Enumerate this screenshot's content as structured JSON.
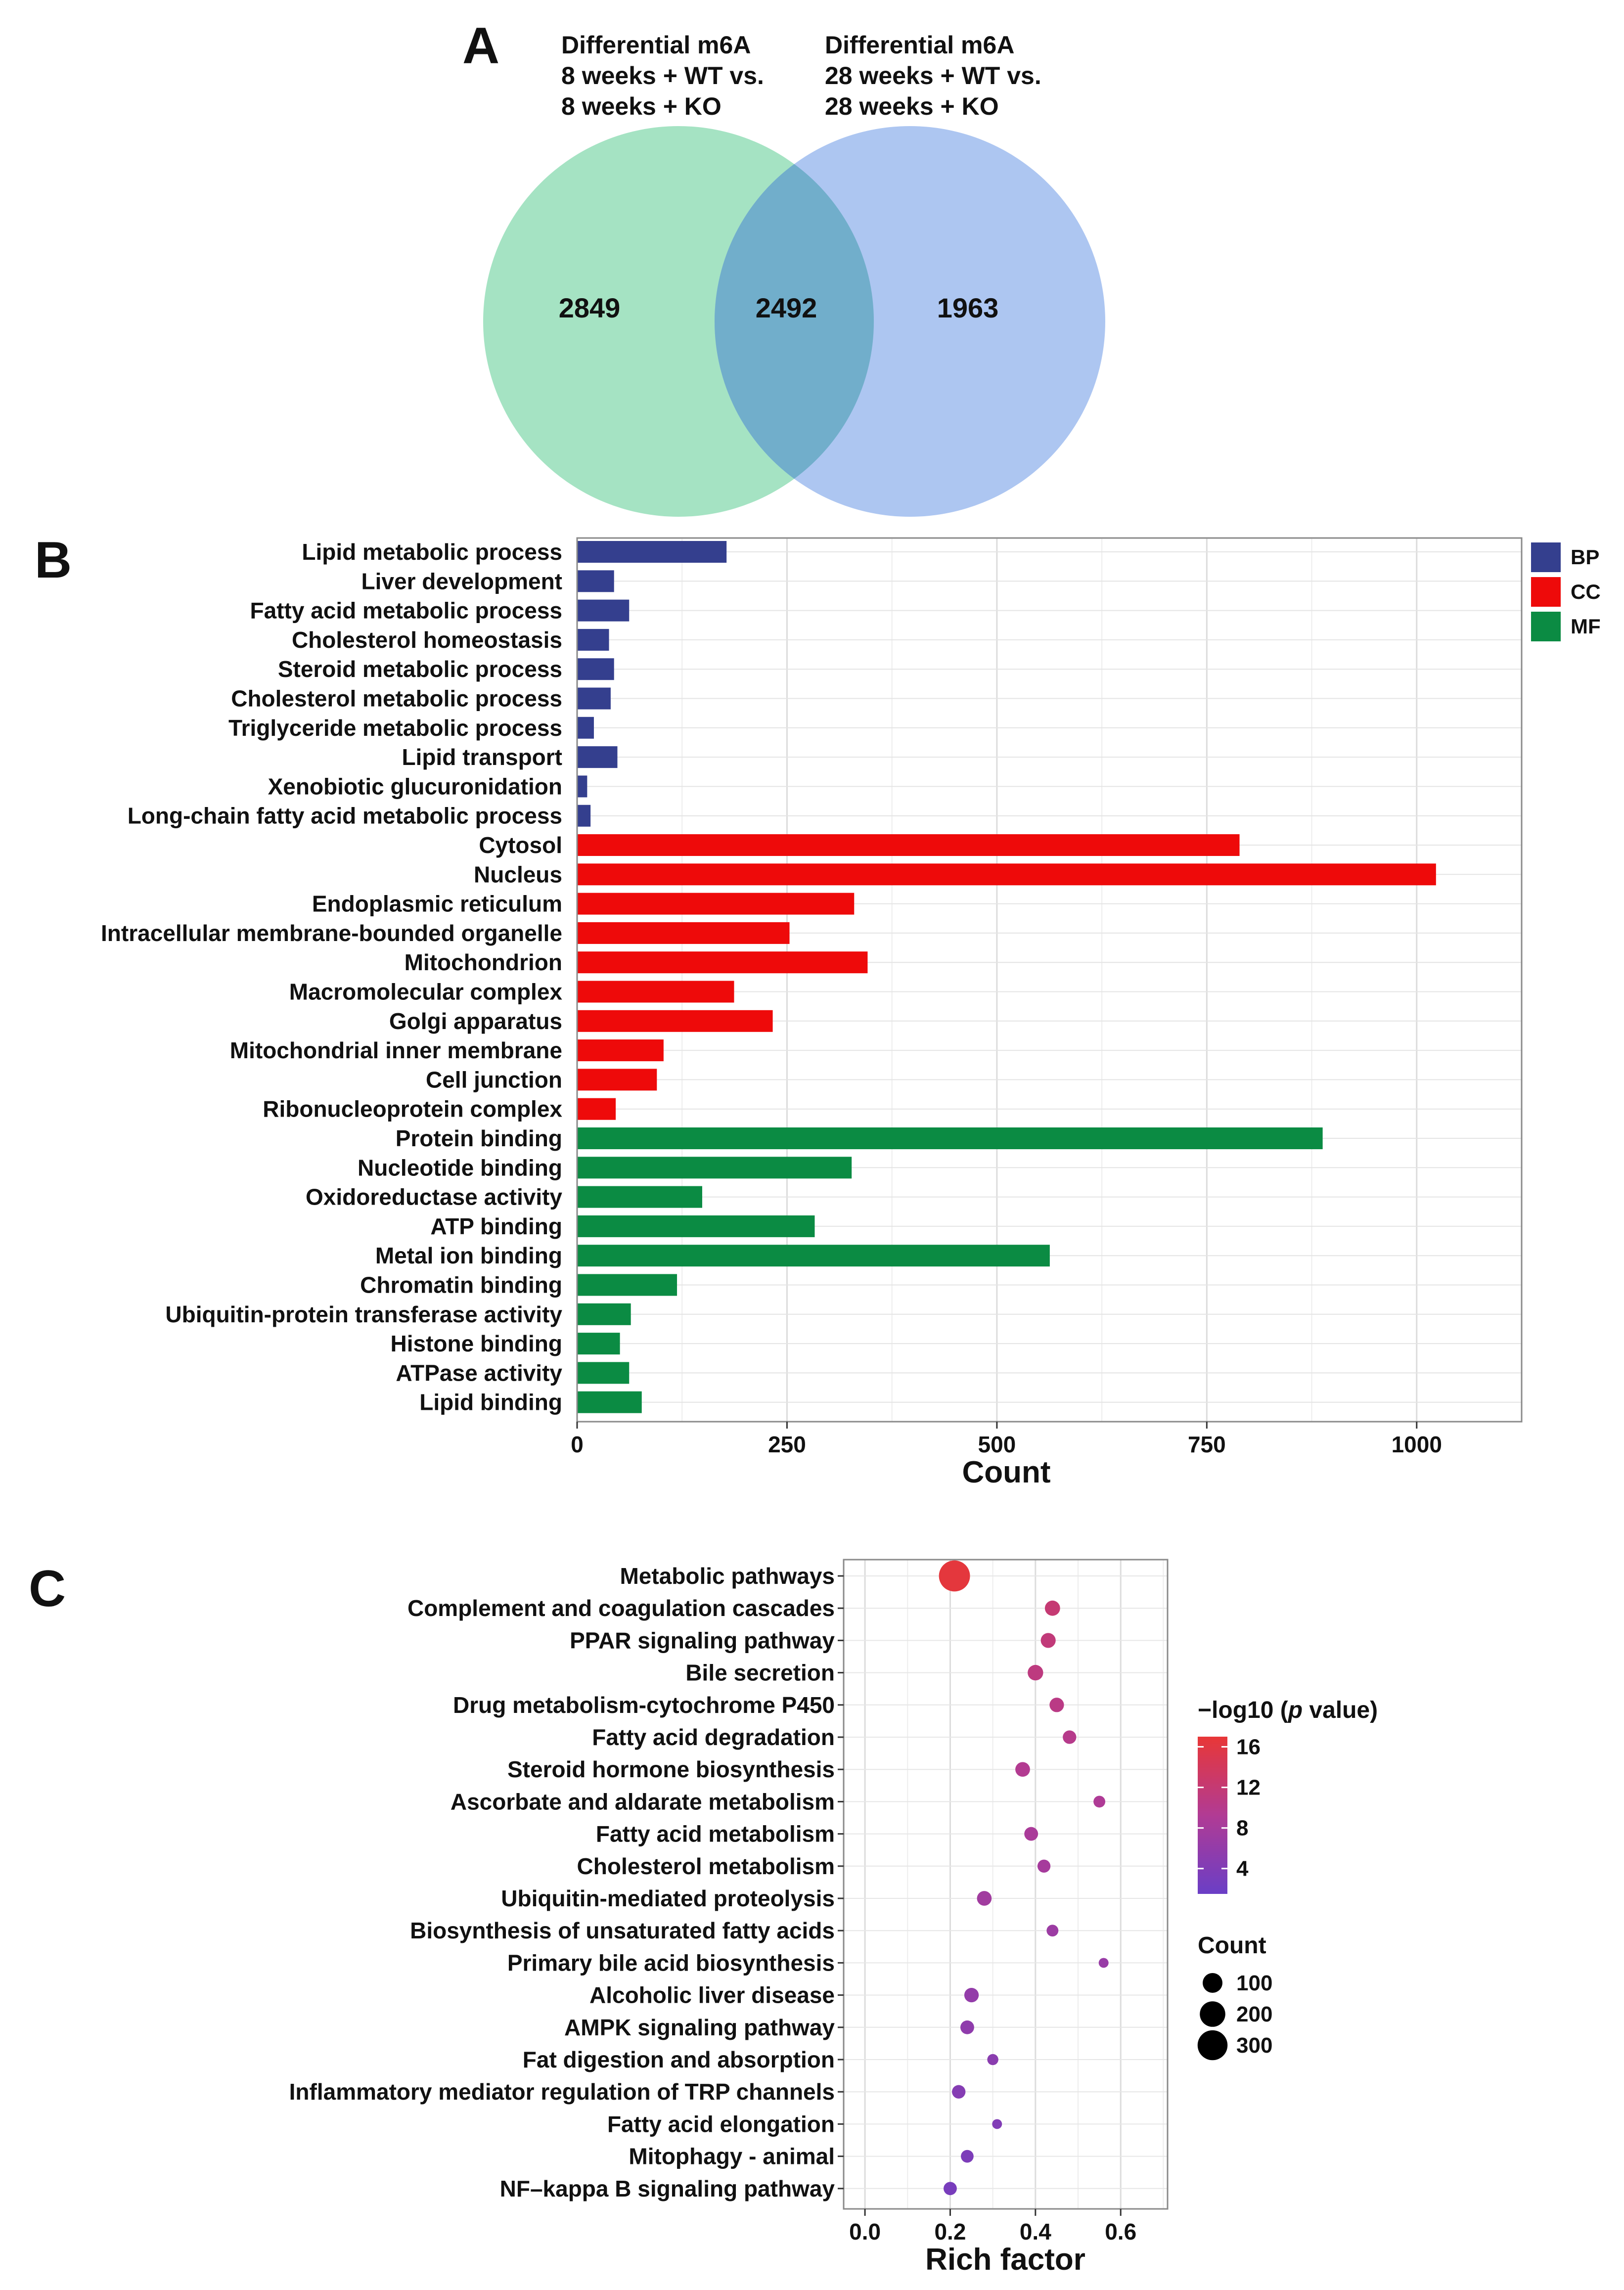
{
  "panels": {
    "a": "A",
    "b": "B",
    "c": "C"
  },
  "chart_data": [
    {
      "type": "venn",
      "panel": "A",
      "sets": [
        {
          "label_lines": [
            "Differential m6A",
            "8 weeks + WT vs.",
            "8 weeks + KO"
          ],
          "only": 2849,
          "color": "#8fdcb4"
        },
        {
          "label_lines": [
            "Differential m6A",
            "28 weeks + WT vs.",
            "28 weeks + KO"
          ],
          "only": 1963,
          "color": "#98b8ee"
        }
      ],
      "overlap": 2492,
      "overlap_color": "#6fadc9"
    },
    {
      "type": "bar",
      "orientation": "horizontal",
      "panel": "B",
      "xlabel": "Count",
      "xlim": [
        0,
        1125
      ],
      "xticks": [
        0,
        250,
        500,
        750,
        1000
      ],
      "grid": true,
      "legend": [
        {
          "name": "BP",
          "color": "#343f8e"
        },
        {
          "name": "CC",
          "color": "#ee0a0a"
        },
        {
          "name": "MF",
          "color": "#0b8b43"
        }
      ],
      "bars": [
        {
          "label": "Lipid metabolic process",
          "value": 178,
          "group": "BP"
        },
        {
          "label": "Liver development",
          "value": 44,
          "group": "BP"
        },
        {
          "label": "Fatty acid metabolic process",
          "value": 62,
          "group": "BP"
        },
        {
          "label": "Cholesterol homeostasis",
          "value": 38,
          "group": "BP"
        },
        {
          "label": "Steroid metabolic process",
          "value": 44,
          "group": "BP"
        },
        {
          "label": "Cholesterol metabolic process",
          "value": 40,
          "group": "BP"
        },
        {
          "label": "Triglyceride metabolic process",
          "value": 20,
          "group": "BP"
        },
        {
          "label": "Lipid transport",
          "value": 48,
          "group": "BP"
        },
        {
          "label": "Xenobiotic glucuronidation",
          "value": 12,
          "group": "BP"
        },
        {
          "label": "Long-chain fatty acid metabolic process",
          "value": 16,
          "group": "BP"
        },
        {
          "label": "Cytosol",
          "value": 789,
          "group": "CC"
        },
        {
          "label": "Nucleus",
          "value": 1023,
          "group": "CC"
        },
        {
          "label": "Endoplasmic reticulum",
          "value": 330,
          "group": "CC"
        },
        {
          "label": "Intracellular membrane-bounded organelle",
          "value": 253,
          "group": "CC"
        },
        {
          "label": "Mitochondrion",
          "value": 346,
          "group": "CC"
        },
        {
          "label": "Macromolecular complex",
          "value": 187,
          "group": "CC"
        },
        {
          "label": "Golgi apparatus",
          "value": 233,
          "group": "CC"
        },
        {
          "label": "Mitochondrial inner membrane",
          "value": 103,
          "group": "CC"
        },
        {
          "label": "Cell junction",
          "value": 95,
          "group": "CC"
        },
        {
          "label": "Ribonucleoprotein complex",
          "value": 46,
          "group": "CC"
        },
        {
          "label": "Protein binding",
          "value": 888,
          "group": "MF"
        },
        {
          "label": "Nucleotide binding",
          "value": 327,
          "group": "MF"
        },
        {
          "label": "Oxidoreductase activity",
          "value": 149,
          "group": "MF"
        },
        {
          "label": "ATP binding",
          "value": 283,
          "group": "MF"
        },
        {
          "label": "Metal ion binding",
          "value": 563,
          "group": "MF"
        },
        {
          "label": "Chromatin binding",
          "value": 119,
          "group": "MF"
        },
        {
          "label": "Ubiquitin-protein transferase activity",
          "value": 64,
          "group": "MF"
        },
        {
          "label": "Histone binding",
          "value": 51,
          "group": "MF"
        },
        {
          "label": "ATPase activity",
          "value": 62,
          "group": "MF"
        },
        {
          "label": "Lipid binding",
          "value": 77,
          "group": "MF"
        }
      ]
    },
    {
      "type": "scatter",
      "panel": "C",
      "xlabel": "Rich factor",
      "xlim": [
        -0.05,
        0.71
      ],
      "xticks": [
        0.0,
        0.2,
        0.4,
        0.6
      ],
      "xtick_labels": [
        "0.0",
        "0.2",
        "0.4",
        "0.6"
      ],
      "grid": true,
      "color_legend": {
        "title_prefix": "−log10 (",
        "title_italic": "p",
        "title_suffix": " value)",
        "range": [
          1.5,
          17
        ],
        "ticks": [
          4,
          8,
          12,
          16
        ],
        "low_color": "#6a3ec6",
        "high_color": "#e83737"
      },
      "size_legend": {
        "title": "Count",
        "values": [
          100,
          200,
          300
        ]
      },
      "points": [
        {
          "label": "Metabolic pathways",
          "x": 0.21,
          "count": 330,
          "logp": 16.5
        },
        {
          "label": "Complement and coagulation cascades",
          "x": 0.44,
          "count": 45,
          "logp": 12
        },
        {
          "label": "PPAR signaling pathway",
          "x": 0.43,
          "count": 42,
          "logp": 11.5
        },
        {
          "label": "Bile secretion",
          "x": 0.4,
          "count": 48,
          "logp": 11
        },
        {
          "label": "Drug metabolism-cytochrome P450  ",
          "x": 0.45,
          "count": 38,
          "logp": 10.5
        },
        {
          "label": "Fatty acid degradation",
          "x": 0.48,
          "count": 30,
          "logp": 10
        },
        {
          "label": "Steroid hormone biosynthesis",
          "x": 0.37,
          "count": 40,
          "logp": 9.5
        },
        {
          "label": "Ascorbate and aldarate metabolism",
          "x": 0.55,
          "count": 18,
          "logp": 9
        },
        {
          "label": "Fatty acid metabolism",
          "x": 0.39,
          "count": 32,
          "logp": 8.5
        },
        {
          "label": "Cholesterol metabolism",
          "x": 0.42,
          "count": 26,
          "logp": 8
        },
        {
          "label": "Ubiquitin-mediated proteolysis",
          "x": 0.28,
          "count": 40,
          "logp": 7.5
        },
        {
          "label": "Biosynthesis of unsaturated fatty acids",
          "x": 0.44,
          "count": 18,
          "logp": 7
        },
        {
          "label": "Primary bile acid biosynthesis",
          "x": 0.56,
          "count": 8,
          "logp": 6.5
        },
        {
          "label": "Alcoholic liver disease",
          "x": 0.25,
          "count": 38,
          "logp": 6
        },
        {
          "label": "AMPK signaling pathway",
          "x": 0.24,
          "count": 32,
          "logp": 5.5
        },
        {
          "label": "Fat digestion and absorption",
          "x": 0.3,
          "count": 14,
          "logp": 5
        },
        {
          "label": "Inflammatory mediator regulation of TRP channels",
          "x": 0.22,
          "count": 30,
          "logp": 4.5
        },
        {
          "label": "Fatty acid elongation",
          "x": 0.31,
          "count": 8,
          "logp": 4
        },
        {
          "label": "Mitophagy - animal",
          "x": 0.24,
          "count": 24,
          "logp": 3.5
        },
        {
          "label": "NF–kappa B signaling pathway",
          "x": 0.2,
          "count": 28,
          "logp": 3
        }
      ]
    }
  ]
}
